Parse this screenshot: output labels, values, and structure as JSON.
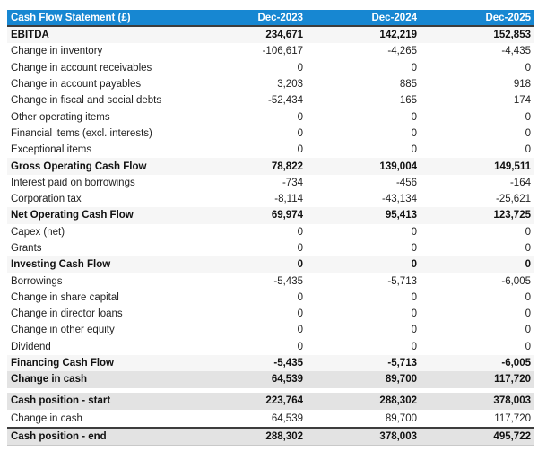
{
  "chart_data": {
    "type": "table",
    "title": "Cash Flow Statement (£)",
    "columns": [
      "Dec-2023",
      "Dec-2024",
      "Dec-2025"
    ],
    "rows": [
      {
        "label": "EBITDA",
        "style": "subtotal",
        "values": [
          "234,671",
          "142,219",
          "152,853"
        ]
      },
      {
        "label": "Change in inventory",
        "style": "normal",
        "values": [
          "-106,617",
          "-4,265",
          "-4,435"
        ]
      },
      {
        "label": "Change in account receivables",
        "style": "normal",
        "values": [
          "0",
          "0",
          "0"
        ]
      },
      {
        "label": "Change in account payables",
        "style": "normal",
        "values": [
          "3,203",
          "885",
          "918"
        ]
      },
      {
        "label": "Change in fiscal and social debts",
        "style": "normal",
        "values": [
          "-52,434",
          "165",
          "174"
        ]
      },
      {
        "label": "Other operating items",
        "style": "normal",
        "values": [
          "0",
          "0",
          "0"
        ]
      },
      {
        "label": "Financial items (excl. interests)",
        "style": "normal",
        "values": [
          "0",
          "0",
          "0"
        ]
      },
      {
        "label": "Exceptional items",
        "style": "normal",
        "values": [
          "0",
          "0",
          "0"
        ]
      },
      {
        "label": "Gross Operating Cash Flow",
        "style": "subtotal",
        "values": [
          "78,822",
          "139,004",
          "149,511"
        ]
      },
      {
        "label": "Interest paid on borrowings",
        "style": "normal",
        "values": [
          "-734",
          "-456",
          "-164"
        ]
      },
      {
        "label": "Corporation tax",
        "style": "normal",
        "values": [
          "-8,114",
          "-43,134",
          "-25,621"
        ]
      },
      {
        "label": "Net Operating Cash Flow",
        "style": "subtotal",
        "values": [
          "69,974",
          "95,413",
          "123,725"
        ]
      },
      {
        "label": "Capex (net)",
        "style": "normal",
        "values": [
          "0",
          "0",
          "0"
        ]
      },
      {
        "label": "Grants",
        "style": "normal",
        "values": [
          "0",
          "0",
          "0"
        ]
      },
      {
        "label": "Investing Cash Flow",
        "style": "subtotal",
        "values": [
          "0",
          "0",
          "0"
        ]
      },
      {
        "label": "Borrowings",
        "style": "normal",
        "values": [
          "-5,435",
          "-5,713",
          "-6,005"
        ]
      },
      {
        "label": "Change in share capital",
        "style": "normal",
        "values": [
          "0",
          "0",
          "0"
        ]
      },
      {
        "label": "Change in director loans",
        "style": "normal",
        "values": [
          "0",
          "0",
          "0"
        ]
      },
      {
        "label": "Change in other equity",
        "style": "normal",
        "values": [
          "0",
          "0",
          "0"
        ]
      },
      {
        "label": "Dividend",
        "style": "normal",
        "values": [
          "0",
          "0",
          "0"
        ]
      },
      {
        "label": "Financing Cash Flow",
        "style": "subtotal",
        "values": [
          "-5,435",
          "-5,713",
          "-6,005"
        ]
      },
      {
        "label": "Change in cash",
        "style": "total",
        "values": [
          "64,539",
          "89,700",
          "117,720"
        ]
      }
    ],
    "position_rows": [
      {
        "label": "Cash position - start",
        "style": "total",
        "values": [
          "223,764",
          "288,302",
          "378,003"
        ]
      },
      {
        "label": "Change in cash",
        "style": "normal",
        "values": [
          "64,539",
          "89,700",
          "117,720"
        ]
      },
      {
        "label": "Cash position - end",
        "style": "total dark-top",
        "values": [
          "288,302",
          "378,003",
          "495,722"
        ]
      }
    ]
  },
  "colors": {
    "header_bg": "#1787d2",
    "header_text": "#ffffff",
    "subtotal_row_bg": "#f6f6f6",
    "total_row_bg": "#e3e3e3",
    "dark_border": "#3d3d3d"
  }
}
